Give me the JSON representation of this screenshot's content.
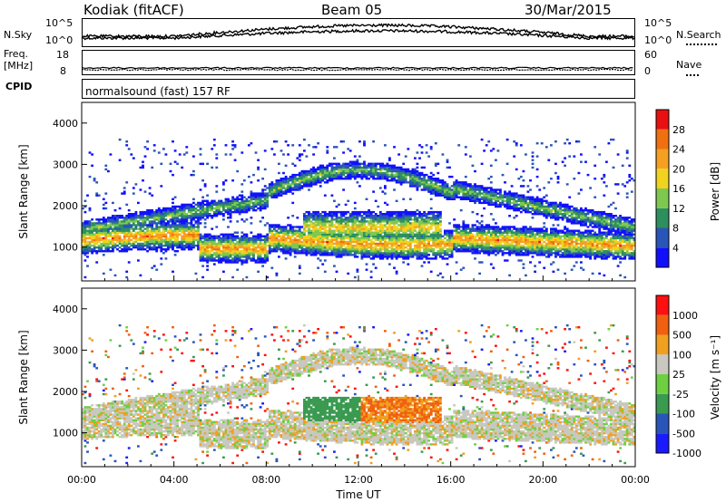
{
  "header": {
    "station": "Kodiak (fitACF)",
    "beam": "Beam 05",
    "date": "30/Mar/2015"
  },
  "noise_panel": {
    "left_label": "N.Sky",
    "left_ticks": [
      "10^5",
      "10^0"
    ],
    "right_label": "N.Search",
    "right_ticks": [
      "10^5",
      "10^0"
    ]
  },
  "freq_panel": {
    "left_label_1": "Freq.",
    "left_label_2": "[MHz]",
    "left_ticks": [
      "18",
      "8"
    ],
    "right_label": "Nave",
    "right_ticks": [
      "60",
      "0"
    ]
  },
  "cpid_panel": {
    "label": "CPID",
    "text": "normalsound (fast) 157 RF"
  },
  "colors": {
    "power": [
      "#1010ff",
      "#2a55b8",
      "#2e8f5e",
      "#7ec850",
      "#f1d21e",
      "#f5a020",
      "#f07010",
      "#e81010"
    ],
    "velocity": [
      "#ff1010",
      "#f06010",
      "#f0a020",
      "#c8c8c0",
      "#6ed040",
      "#3a9a50",
      "#2a55b8",
      "#1a1aff"
    ]
  },
  "chart_data": [
    {
      "type": "heatmap",
      "title": "",
      "ylabel": "Slant Range [km]",
      "xlabel": "",
      "yticks": [
        "4000",
        "3000",
        "2000",
        "1000"
      ],
      "ylim": [
        180,
        4500
      ],
      "xlim": [
        0,
        24
      ],
      "colorbar": {
        "label": "Power [dB]",
        "ticks": [
          "28",
          "24",
          "20",
          "16",
          "12",
          "8",
          "4"
        ],
        "range": [
          0,
          32
        ]
      }
    },
    {
      "type": "heatmap",
      "title": "",
      "ylabel": "Slant Range [km]",
      "xlabel": "Time UT",
      "xticks": [
        "00:00",
        "04:00",
        "08:00",
        "12:00",
        "16:00",
        "20:00",
        "00:00"
      ],
      "yticks": [
        "4000",
        "3000",
        "2000",
        "1000"
      ],
      "ylim": [
        180,
        4500
      ],
      "xlim": [
        0,
        24
      ],
      "colorbar": {
        "label": "Velocity [m s⁻¹]",
        "ticks": [
          "1000",
          "500",
          "100",
          "25",
          "-25",
          "-100",
          "-500",
          "-1000"
        ]
      }
    }
  ]
}
